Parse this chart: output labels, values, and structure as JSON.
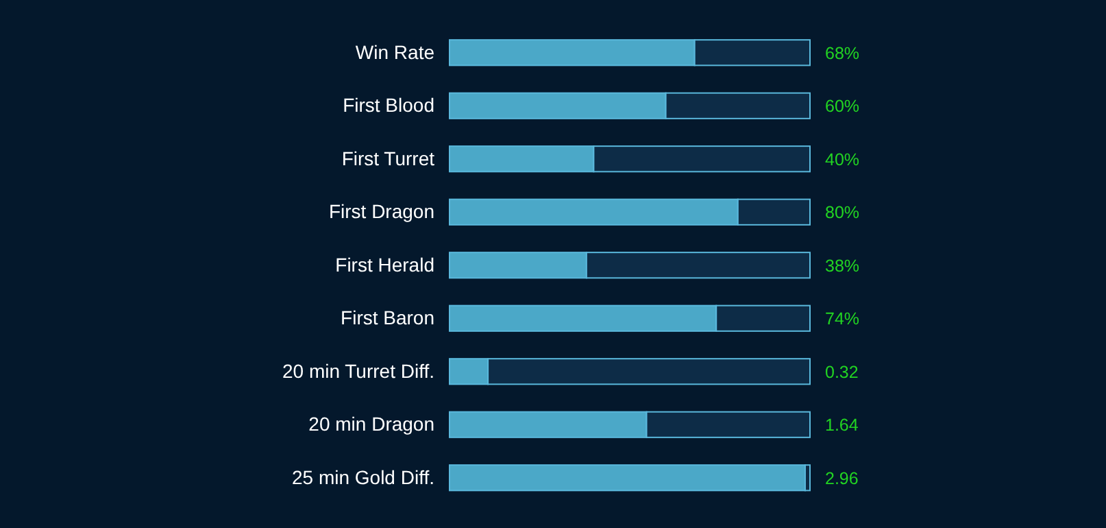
{
  "chart_data": [
    {
      "type": "bar",
      "orientation": "horizontal",
      "stacked": true,
      "categories": [
        "Win Rate",
        "First Blood",
        "First Turret",
        "First Dragon",
        "First Herald",
        "First Baron"
      ],
      "xlim": [
        0,
        100
      ],
      "tick_labels": "y",
      "series": [
        {
          "color": "#4ba8c8",
          "values": [
            68,
            60,
            40,
            80,
            38,
            74
          ],
          "value_labels": [
            "68%",
            "60%",
            "40%",
            "80%",
            "38%",
            "74%"
          ]
        },
        {
          "color": "#0d2c47",
          "values": [
            32,
            40,
            60,
            20,
            62,
            26
          ]
        }
      ]
    },
    {
      "type": "bar",
      "orientation": "horizontal",
      "stacked": true,
      "categories": [
        "20 min Turret Diff.",
        "20 min Dragon",
        "25 min Gold Diff."
      ],
      "xlim": [
        0,
        3
      ],
      "tick_labels": "y",
      "series": [
        {
          "color": "#4ba8c8",
          "values": [
            0.32,
            1.64,
            2.96
          ],
          "value_labels": [
            "0.32",
            "1.64",
            "2.96"
          ]
        },
        {
          "color": "#0d2c47",
          "values": [
            2.68,
            1.36,
            0.04
          ]
        }
      ]
    }
  ]
}
